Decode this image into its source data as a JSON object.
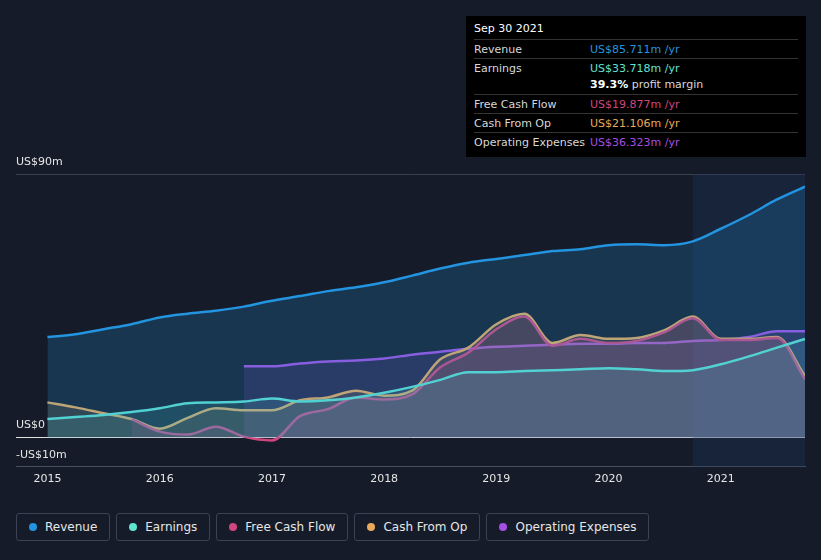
{
  "chart_data": {
    "type": "line",
    "x": [
      2015.0,
      2015.25,
      2015.5,
      2015.75,
      2016.0,
      2016.25,
      2016.5,
      2016.75,
      2017.0,
      2017.25,
      2017.5,
      2017.75,
      2018.0,
      2018.25,
      2018.5,
      2018.75,
      2019.0,
      2019.25,
      2019.5,
      2019.75,
      2020.0,
      2020.25,
      2020.5,
      2020.75,
      2021.0,
      2021.25,
      2021.5,
      2021.75
    ],
    "series": [
      {
        "name": "Revenue",
        "color": "#2394df",
        "values": [
          34.3,
          35.3,
          37,
          38.7,
          41,
          42.3,
          43.3,
          44.7,
          46.7,
          48.3,
          50,
          51.3,
          53,
          55.3,
          57.7,
          59.7,
          61,
          62.3,
          63.7,
          64.3,
          65.7,
          66,
          65.7,
          67,
          71.3,
          76,
          81.3,
          85.7
        ]
      },
      {
        "name": "Earnings",
        "color": "#5fe2cf",
        "values": [
          6.3,
          7,
          7.7,
          8.7,
          10,
          11.7,
          12,
          12.3,
          13.3,
          12.3,
          12.7,
          13.7,
          15.3,
          17.3,
          19.7,
          22.3,
          22.3,
          22.7,
          23,
          23.3,
          23.7,
          23.3,
          22.7,
          23,
          25,
          27.7,
          30.7,
          33.7
        ]
      },
      {
        "name": "Free Cash Flow",
        "color": "#d1467f",
        "values": [
          null,
          null,
          null,
          6.3,
          2,
          1,
          3.7,
          0.3,
          -1,
          7.3,
          9.7,
          13.7,
          13,
          14.7,
          24,
          29,
          37,
          41.3,
          31.3,
          33.7,
          32.3,
          33,
          36,
          40.7,
          33.3,
          33.3,
          34,
          19.9
        ]
      },
      {
        "name": "Cash From Op",
        "color": "#e9a95b",
        "values": [
          12,
          10.3,
          8.3,
          6.3,
          3,
          6.7,
          10,
          9.3,
          9.3,
          12.7,
          13.7,
          16,
          14.3,
          16,
          26.7,
          30.7,
          38.7,
          42.3,
          32.3,
          35,
          33.7,
          34,
          36.7,
          41.3,
          33.7,
          33.7,
          34.3,
          21.1
        ]
      },
      {
        "name": "Operating Expenses",
        "color": "#a44fe2",
        "values": [
          null,
          null,
          null,
          null,
          null,
          null,
          null,
          24.3,
          24.3,
          25.3,
          26,
          26.3,
          27,
          28.3,
          29.3,
          30.3,
          31,
          31.3,
          31.7,
          32,
          32,
          32.3,
          32.3,
          33,
          33.3,
          34.3,
          36.3,
          36.3
        ]
      }
    ],
    "xlim": [
      2014.72,
      2021.75
    ],
    "xticks": [
      2015,
      2016,
      2017,
      2018,
      2019,
      2020,
      2021
    ],
    "ylim": [
      -10,
      90
    ],
    "yticks": [
      {
        "value": 90,
        "label": "US$90m"
      },
      {
        "value": 0,
        "label": "US$0"
      },
      {
        "value": -10,
        "label": "-US$10m"
      }
    ],
    "grid": true,
    "annotation": {
      "title": "Sep 30 2021",
      "rows": [
        {
          "label": "Revenue",
          "value": "US$85.711m /yr"
        },
        {
          "label": "Earnings",
          "value": "US$33.718m /yr",
          "note": "39.3% profit margin"
        },
        {
          "label": "Free Cash Flow",
          "value": "US$19.877m /yr"
        },
        {
          "label": "Cash From Op",
          "value": "US$21.106m /yr"
        },
        {
          "label": "Operating Expenses",
          "value": "US$36.323m /yr"
        }
      ]
    }
  }
}
